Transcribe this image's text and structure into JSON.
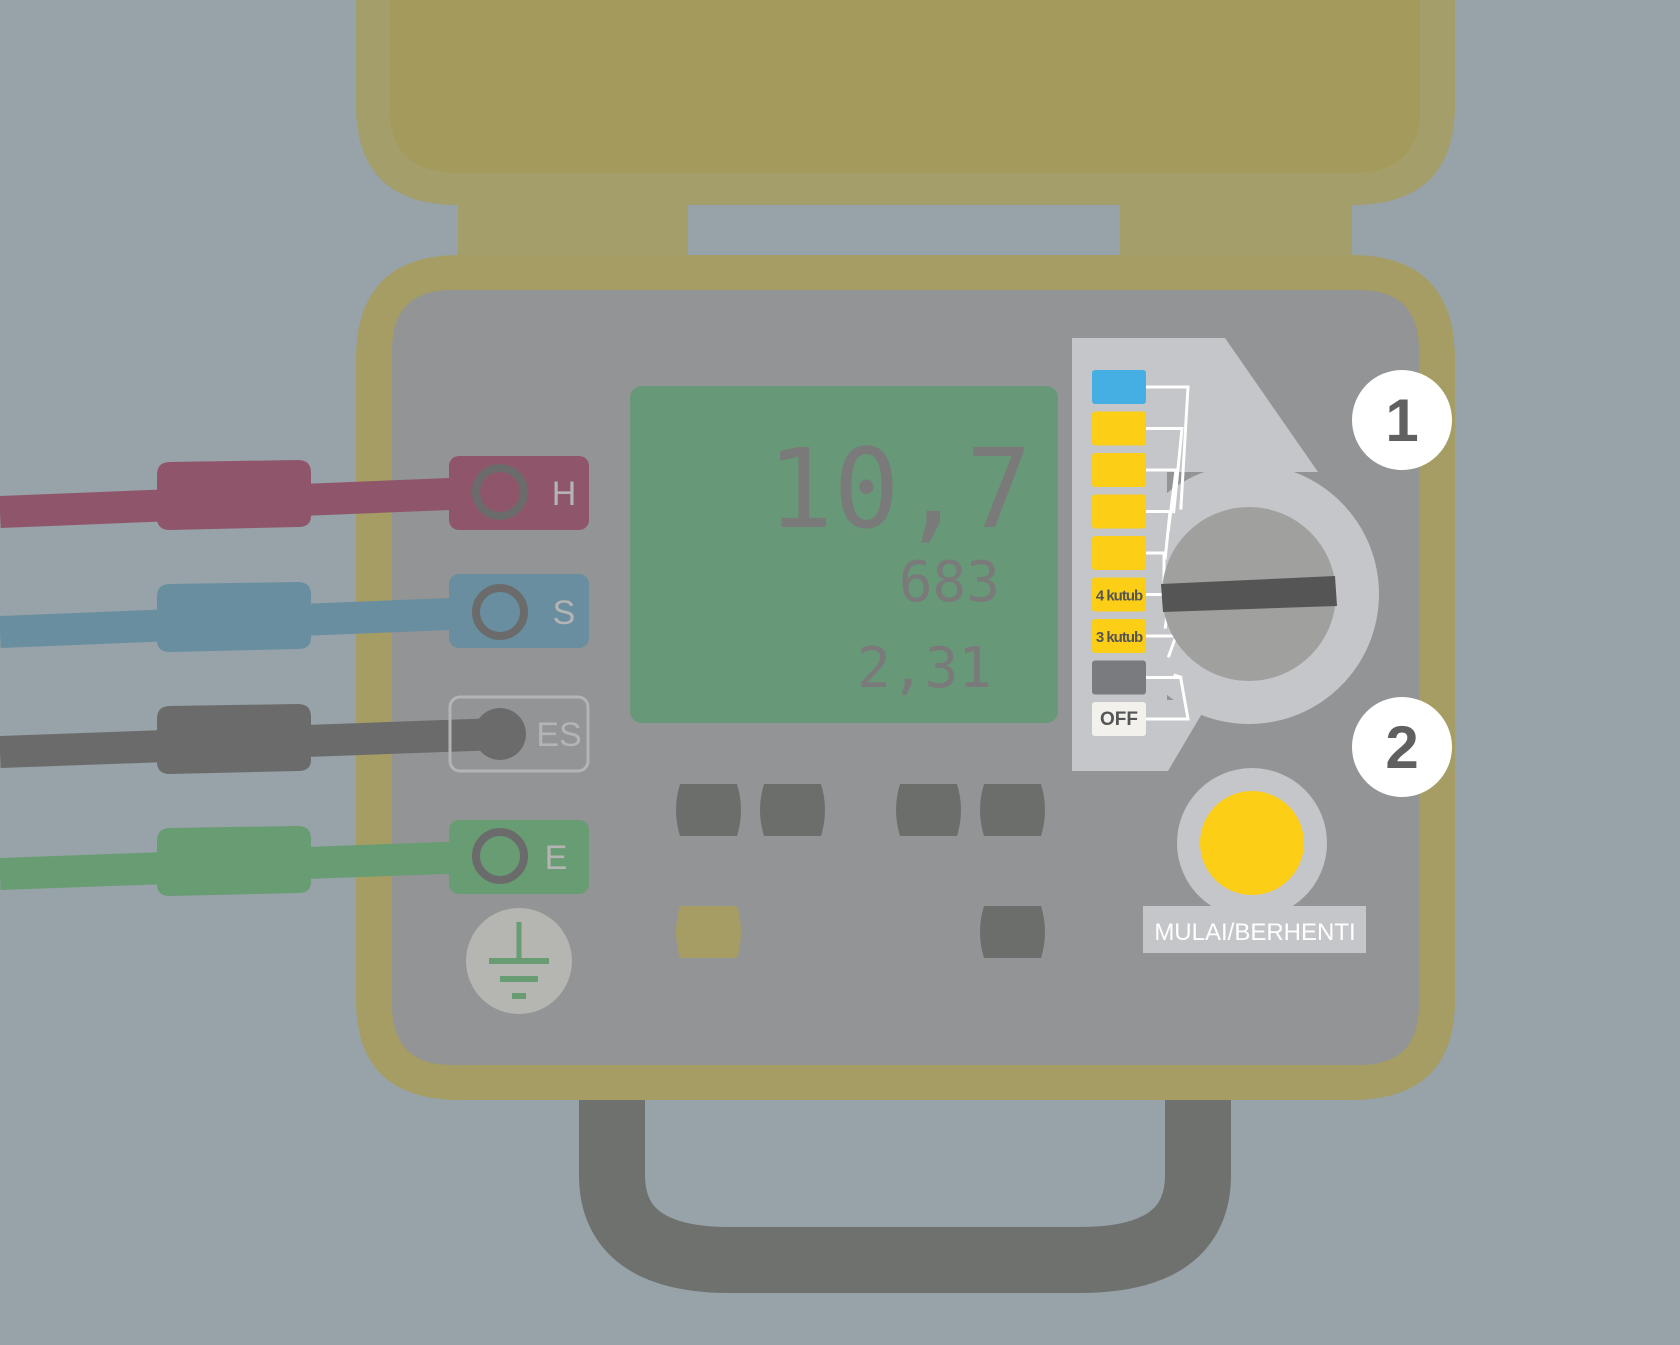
{
  "terminals": [
    {
      "label": "H",
      "color": "#8f556b"
    },
    {
      "label": "S",
      "color": "#698ea0"
    },
    {
      "label": "ES",
      "color": "#6b6b6b"
    },
    {
      "label": "E",
      "color": "#689c72"
    }
  ],
  "display": {
    "main_reading": "10,7",
    "second_reading": "683",
    "third_reading": "2,31"
  },
  "rotary_switch": {
    "positions": [
      {
        "label": "",
        "color": "#45aee2"
      },
      {
        "label": "",
        "color": "#fcce16"
      },
      {
        "label": "",
        "color": "#fcce16"
      },
      {
        "label": "",
        "color": "#fcce16"
      },
      {
        "label": "",
        "color": "#fcce16"
      },
      {
        "label": "4 kutub",
        "color": "#fcce16"
      },
      {
        "label": "3 kutub",
        "color": "#fcce16"
      },
      {
        "label": "",
        "color": "#7a7b7f"
      },
      {
        "label": "OFF",
        "color": "#f2f1ec"
      }
    ]
  },
  "steps": {
    "step1": "1",
    "step2": "2"
  },
  "start_button": {
    "label": "MULAI/BERHENTI",
    "color": "#fcce16"
  },
  "colors": {
    "case": "#a59d64",
    "panel": "#929496",
    "lcd": "#679877",
    "handle": "#6f716e",
    "background": "#97a3a8"
  }
}
